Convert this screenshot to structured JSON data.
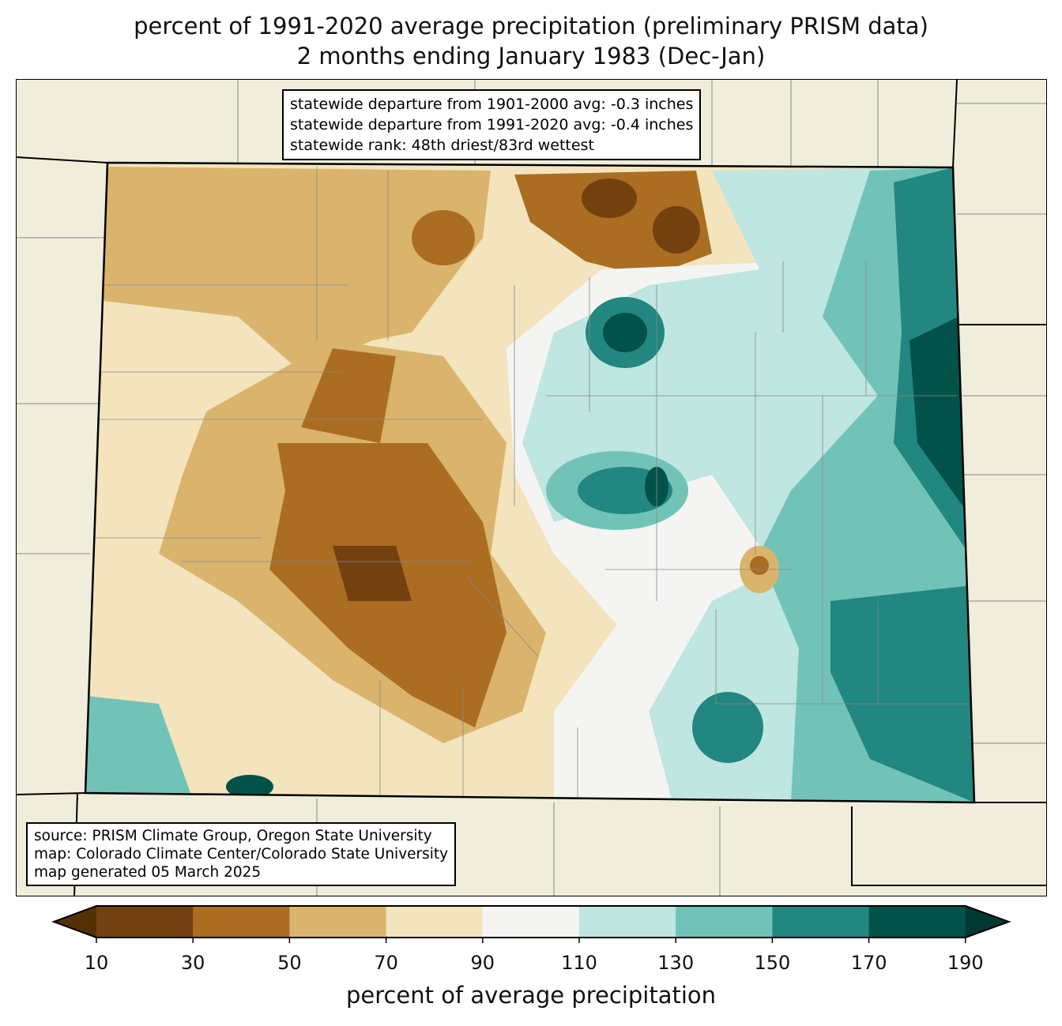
{
  "title": {
    "line1": "percent of 1991-2020 average precipitation (preliminary PRISM data)",
    "line2": "2 months ending January 1983 (Dec-Jan)"
  },
  "stats": [
    "statewide departure from 1901-2000 avg: -0.3 inches",
    "statewide departure from 1991-2020 avg: -0.4 inches",
    "statewide rank: 48th driest/83rd wettest"
  ],
  "source": [
    "source: PRISM Climate Group, Oregon State University",
    "map: Colorado Climate Center/Colorado State University",
    "map generated 05 March 2025"
  ],
  "colorbar": {
    "label": "percent of average precipitation",
    "ticks": [
      "10",
      "30",
      "50",
      "70",
      "90",
      "110",
      "130",
      "150",
      "170",
      "190"
    ],
    "colors": [
      "#734010",
      "#ab6d22",
      "#dab46d",
      "#f3e4bd",
      "#f4f5f3",
      "#bfe6e1",
      "#72c3b7",
      "#228780",
      "#02524a"
    ],
    "under_color": "#543005",
    "over_color": "#013832"
  }
}
